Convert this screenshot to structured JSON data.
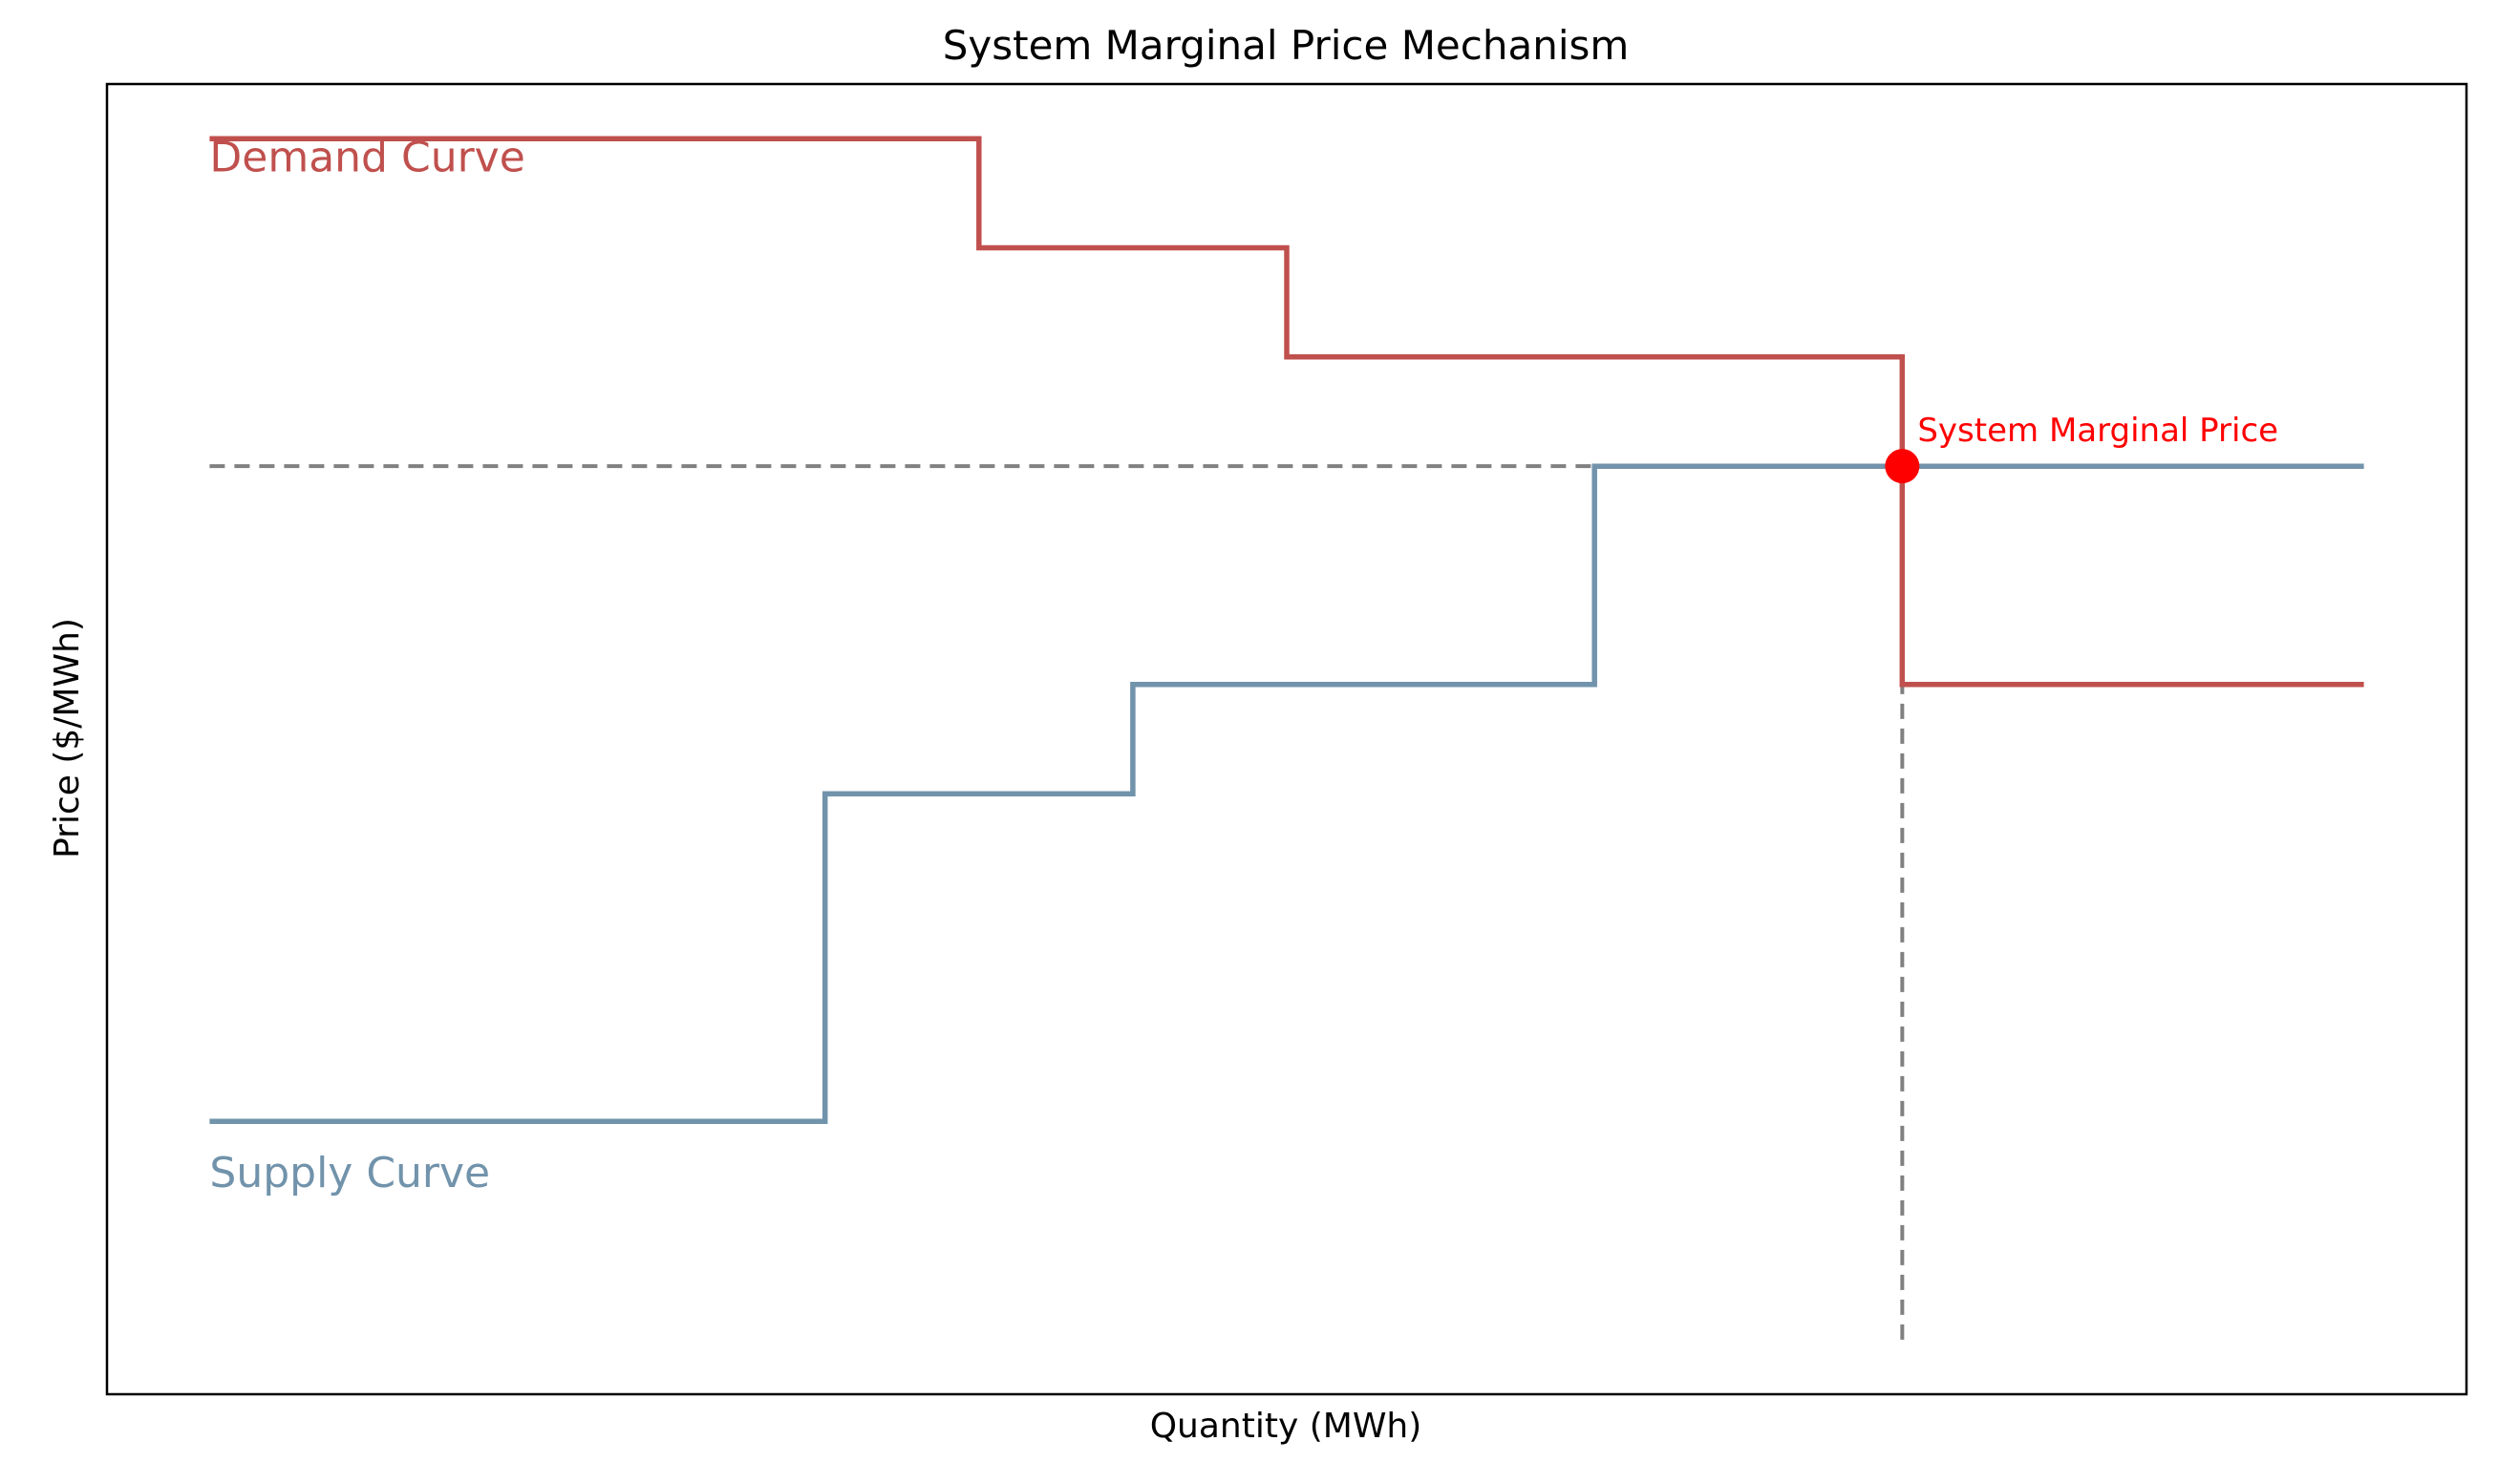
{
  "chart_data": {
    "type": "line",
    "title": "System Marginal Price Mechanism",
    "xlabel": "Quantity (MWh)",
    "ylabel": "Price ($/MWh)",
    "xlim": [
      -0.5,
      11
    ],
    "ylim": [
      -3,
      9
    ],
    "grid": false,
    "legend": "none",
    "series": [
      {
        "name": "Demand Curve",
        "color": "#c0504d",
        "x": [
          0,
          3.75,
          3.75,
          5.25,
          5.25,
          8.25,
          8.25,
          10.5
        ],
        "y": [
          8.5,
          8.5,
          7.5,
          7.5,
          6.5,
          6.5,
          3.5,
          3.5
        ]
      },
      {
        "name": "Supply Curve",
        "color": "#7193ab",
        "x": [
          0,
          3,
          3,
          4.5,
          4.5,
          6.75,
          6.75,
          10.5
        ],
        "y": [
          -0.5,
          -0.5,
          2.5,
          2.5,
          3.5,
          3.5,
          5.5,
          5.5
        ]
      }
    ],
    "guides": {
      "horizontal": {
        "y": 5.5,
        "x": [
          0,
          8.25
        ],
        "color": "#808080"
      },
      "vertical": {
        "x": 8.25,
        "y": [
          -2.5,
          5.5
        ],
        "color": "#808080"
      }
    },
    "point": {
      "x": 8.25,
      "y": 5.5,
      "color": "#ff0000"
    },
    "annotation": {
      "text": "System Marginal Price",
      "x": 8.25,
      "y": 5.5,
      "color": "#ff0000"
    },
    "labels": [
      {
        "text": "Demand Curve",
        "x": 0,
        "y": 8.2,
        "color": "#c0504d"
      },
      {
        "text": "Supply Curve",
        "x": 0,
        "y": -1.1,
        "color": "#7193ab"
      }
    ]
  }
}
